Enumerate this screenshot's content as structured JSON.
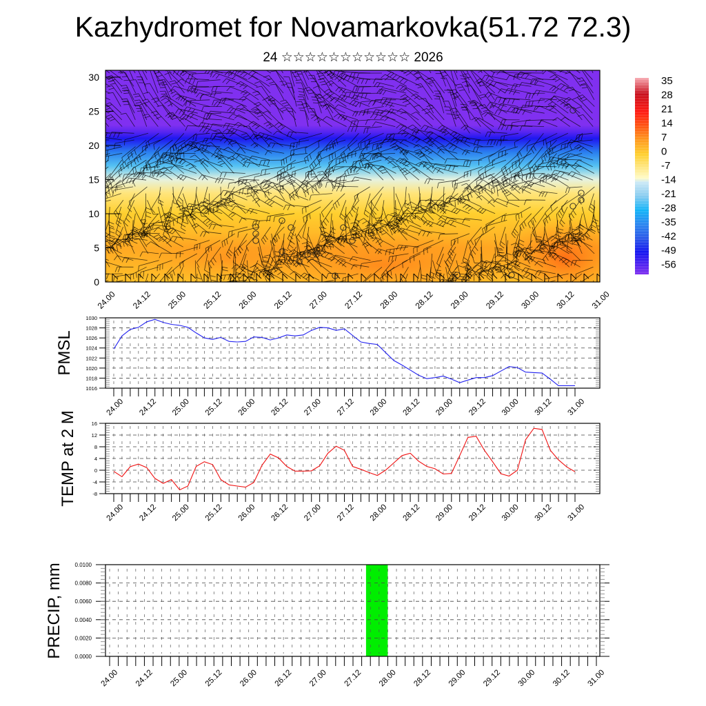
{
  "header": {
    "title": "Kazhydromet for Novamarkovka(51.72 72.3)",
    "subtitle": "24 ☆☆☆☆☆☆☆☆☆☆☆ 2026"
  },
  "colors": {
    "pmsl_line": "#2020f0",
    "temp_line": "#f01010",
    "precip_bar": "#00ee00",
    "frame": "#000000",
    "grid": "#555555"
  },
  "chart_data": [
    {
      "type": "heatmap",
      "name": "wind-temperature-cross-section",
      "title": "",
      "xlabel": "",
      "ylabel": "",
      "xticks": [
        "24.00",
        "24.12",
        "25.00",
        "25.12",
        "26.00",
        "26.12",
        "27.00",
        "27.12",
        "28.00",
        "28.12",
        "29.00",
        "29.12",
        "30.00",
        "30.12",
        "31.00"
      ],
      "yticks": [
        "0",
        "5",
        "10",
        "15",
        "20",
        "25",
        "30"
      ],
      "ylim": [
        0,
        31
      ],
      "colorbar": {
        "labels": [
          "35",
          "28",
          "21",
          "14",
          "7",
          "0",
          "-7",
          "-14",
          "-21",
          "-28",
          "-35",
          "-42",
          "-49",
          "-56"
        ],
        "range": [
          -60,
          38
        ],
        "stops": [
          {
            "value": 38,
            "color": "#f7a8b0"
          },
          {
            "value": 30,
            "color": "#c8101e"
          },
          {
            "value": 21,
            "color": "#ff1a12"
          },
          {
            "value": 14,
            "color": "#ff5512"
          },
          {
            "value": 7,
            "color": "#ff9a1e"
          },
          {
            "value": 0,
            "color": "#ffcf2e"
          },
          {
            "value": -12,
            "color": "#fffbc8"
          },
          {
            "value": -14,
            "color": "#cce9f6"
          },
          {
            "value": -21,
            "color": "#88ccf0"
          },
          {
            "value": -28,
            "color": "#12b4f8"
          },
          {
            "value": -35,
            "color": "#2a86f0"
          },
          {
            "value": -42,
            "color": "#2a58e8"
          },
          {
            "value": -49,
            "color": "#1414f0"
          },
          {
            "value": -60,
            "color": "#8030f0"
          }
        ]
      },
      "level_temperatures": [
        {
          "level": 0,
          "value": 2
        },
        {
          "level": 5,
          "value": 5
        },
        {
          "level": 10,
          "value": 0
        },
        {
          "level": 13,
          "value": -6
        },
        {
          "level": 15,
          "value": -13
        },
        {
          "level": 17,
          "value": -24
        },
        {
          "level": 19,
          "value": -36
        },
        {
          "level": 21,
          "value": -50
        },
        {
          "level": 22,
          "value": -56
        },
        {
          "level": 23,
          "value": -60
        },
        {
          "level": 31,
          "value": -60
        }
      ]
    },
    {
      "type": "line",
      "name": "pmsl",
      "title": "",
      "ylabel": "PMSL",
      "xlabel": "",
      "ylim": [
        1016,
        1030
      ],
      "yticks": [
        "1030",
        "1028",
        "1026",
        "1024",
        "1022",
        "1020",
        "1018",
        "1016"
      ],
      "xticks": [
        "24.00",
        "24.12",
        "25.00",
        "25.12",
        "26.00",
        "26.12",
        "27.00",
        "27.12",
        "28.00",
        "28.12",
        "29.00",
        "29.12",
        "30.00",
        "30.12",
        "31.00"
      ],
      "x_step_hours": 3,
      "values": [
        1023.8,
        1026.4,
        1027.7,
        1028.1,
        1029.2,
        1029.7,
        1029.1,
        1028.7,
        1028.5,
        1028.1,
        1027.0,
        1026.0,
        1025.7,
        1026.1,
        1025.3,
        1025.2,
        1025.3,
        1026.2,
        1026.1,
        1025.6,
        1026.0,
        1026.6,
        1026.4,
        1026.6,
        1027.5,
        1028.1,
        1028.0,
        1027.5,
        1027.8,
        1026.5,
        1025.2,
        1024.9,
        1024.7,
        1023.1,
        1021.5,
        1020.6,
        1019.6,
        1018.6,
        1017.9,
        1018.1,
        1018.4,
        1017.8,
        1017.1,
        1017.6,
        1018.1,
        1018.1,
        1018.5,
        1019.4,
        1020.3,
        1020.1,
        1019.2,
        1019.1,
        1019.0,
        1017.8,
        1016.5,
        1016.5,
        1016.5
      ],
      "grid": true
    },
    {
      "type": "line",
      "name": "temp-2m",
      "title": "",
      "ylabel": "TEMP at 2 M",
      "xlabel": "",
      "ylim": [
        -8,
        16
      ],
      "yticks": [
        "16",
        "12",
        "8",
        "4",
        "0",
        "-4",
        "-8"
      ],
      "xticks": [
        "24.00",
        "24.12",
        "25.00",
        "25.12",
        "26.00",
        "26.12",
        "27.00",
        "27.12",
        "28.00",
        "28.12",
        "29.00",
        "29.12",
        "30.00",
        "30.12",
        "31.00"
      ],
      "x_step_hours": 3,
      "values": [
        -0.4,
        -2.2,
        1.2,
        2.1,
        0.9,
        -2.8,
        -4.5,
        -3.2,
        -6.7,
        -5.4,
        1.3,
        2.9,
        1.9,
        -3.2,
        -5.0,
        -5.4,
        -5.8,
        -4.2,
        1.7,
        5.5,
        4.2,
        1.3,
        -0.3,
        -0.3,
        -0.2,
        1.5,
        5.8,
        8.2,
        6.8,
        1.3,
        0.3,
        -0.8,
        -1.8,
        0.0,
        2.5,
        5.0,
        5.8,
        3.1,
        1.3,
        0.5,
        -1.3,
        -1.1,
        5.0,
        11.2,
        11.6,
        6.8,
        2.9,
        -1.2,
        -2.0,
        0.0,
        10.4,
        14.3,
        13.9,
        6.8,
        3.5,
        1.1,
        -0.5
      ],
      "grid": true
    },
    {
      "type": "bar",
      "name": "precip",
      "title": "",
      "ylabel": "PRECIP, mm",
      "xlabel": "",
      "ylim": [
        0,
        0.01
      ],
      "yticks": [
        "0.0100",
        "0.0080",
        "0.0060",
        "0.0040",
        "0.0020",
        "0.0000"
      ],
      "xticks": [
        "24.00",
        "24.12",
        "25.00",
        "25.12",
        "26.00",
        "26.12",
        "27.00",
        "27.12",
        "28.00",
        "28.12",
        "29.00",
        "29.12",
        "30.00",
        "30.12",
        "31.00"
      ],
      "bars": [
        {
          "start_hour": 88.5,
          "end_hour": 96,
          "value": 0.01
        }
      ],
      "grid": true
    }
  ]
}
